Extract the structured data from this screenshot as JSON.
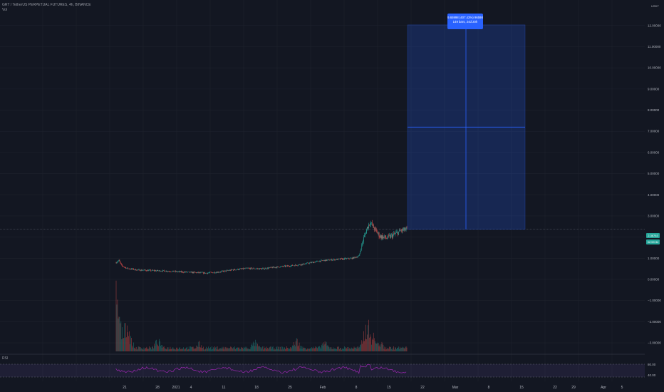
{
  "header": {
    "symbol_line": "GRT / TetherUS PERPETUAL FUTURES, 4h, BINANCE",
    "volume_label": "Vol"
  },
  "price_axis": {
    "currency": "USDT",
    "ticks": [
      "12.00000",
      "11.00000",
      "10.00000",
      "9.00000",
      "8.00000",
      "7.00000",
      "6.00000",
      "5.00000",
      "4.00000",
      "3.00000",
      "2.00000",
      "1.00000",
      "0.00000",
      "−1.00000",
      "−2.00000",
      "−3.00000"
    ],
    "last_price_tag": "2.36763",
    "countdown_tag": "02:59:34"
  },
  "rsi": {
    "label": "RSI",
    "levels": [
      "80.00",
      "40.00"
    ]
  },
  "time_axis": {
    "labels": [
      "21",
      "28",
      "2021",
      "4",
      "11",
      "18",
      "25",
      "Feb",
      "8",
      "15",
      "22",
      "Mar",
      "8",
      "15",
      "22",
      "29",
      "Apr",
      "5"
    ]
  },
  "measure_tool": {
    "line1": "9.65998 (407.43%) 96598",
    "line2": "149 bars, 24d 20h"
  },
  "colors": {
    "background": "#131722",
    "up": "#26a69a",
    "down": "#ef5350",
    "rsi": "#9c27b0",
    "measure": "#2962ff"
  },
  "chart_data": {
    "type": "candlestick",
    "title": "GRT / TetherUS PERPETUAL FUTURES, 4h, BINANCE",
    "ylim": [
      -3.3,
      12.6
    ],
    "price_path": [
      [
        0,
        0.8
      ],
      [
        4,
        0.9
      ],
      [
        8,
        0.65
      ],
      [
        16,
        0.52
      ],
      [
        30,
        0.45
      ],
      [
        50,
        0.42
      ],
      [
        70,
        0.4
      ],
      [
        90,
        0.36
      ],
      [
        110,
        0.33
      ],
      [
        130,
        0.3
      ],
      [
        150,
        0.36
      ],
      [
        170,
        0.46
      ],
      [
        190,
        0.52
      ],
      [
        210,
        0.5
      ],
      [
        230,
        0.58
      ],
      [
        250,
        0.64
      ],
      [
        270,
        0.72
      ],
      [
        290,
        0.85
      ],
      [
        300,
        0.9
      ],
      [
        320,
        0.95
      ],
      [
        340,
        1.0
      ],
      [
        350,
        1.1
      ],
      [
        357,
        1.95
      ],
      [
        362,
        2.45
      ],
      [
        366,
        2.7
      ],
      [
        372,
        2.4
      ],
      [
        380,
        2.05
      ],
      [
        390,
        1.95
      ],
      [
        400,
        2.1
      ],
      [
        410,
        2.3
      ],
      [
        420,
        2.37
      ]
    ],
    "volume_peaks": [
      [
        0,
        1.8
      ],
      [
        14,
        1.0
      ],
      [
        18,
        0.5
      ],
      [
        60,
        0.35
      ],
      [
        120,
        0.25
      ],
      [
        200,
        0.3
      ],
      [
        260,
        0.35
      ],
      [
        300,
        0.3
      ],
      [
        362,
        0.9
      ],
      [
        370,
        0.5
      ],
      [
        380,
        0.3
      ]
    ],
    "measurement": {
      "from_price": 2.37,
      "to_price": 12.03,
      "change": "9.65998 (407.43%)",
      "bars": 149
    }
  }
}
